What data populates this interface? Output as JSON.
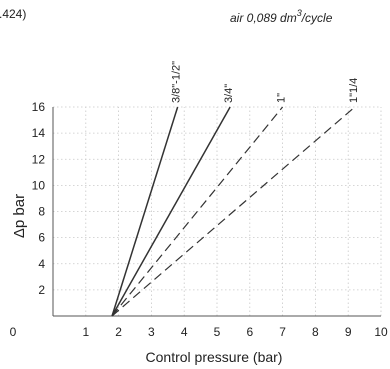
{
  "header": {
    "fragment": ".424)",
    "subtitle_prefix": "air 0,089 dm",
    "subtitle_sup": "3",
    "subtitle_suffix": "/cycle"
  },
  "chart_data": {
    "type": "line",
    "xlabel": "Control pressure (bar)",
    "ylabel": "Δp bar",
    "xlim": [
      0,
      10
    ],
    "ylim": [
      0,
      16
    ],
    "x_ticks": [
      0,
      1,
      2,
      3,
      4,
      5,
      6,
      7,
      8,
      9,
      10
    ],
    "y_ticks": [
      2,
      4,
      6,
      8,
      10,
      12,
      14,
      16
    ],
    "grid": true,
    "series": [
      {
        "name": "3/8\"-1/2\"",
        "style": "solid",
        "x": [
          1.8,
          3.8
        ],
        "y": [
          0,
          16
        ]
      },
      {
        "name": "3/4\"",
        "style": "solid",
        "x": [
          1.8,
          5.4
        ],
        "y": [
          0,
          16
        ]
      },
      {
        "name": "1\"",
        "style": "dashed",
        "x": [
          1.8,
          7.0
        ],
        "y": [
          0,
          16
        ]
      },
      {
        "name": "1\"1/4",
        "style": "dashed",
        "x": [
          1.8,
          9.2
        ],
        "y": [
          0,
          16
        ]
      }
    ]
  }
}
